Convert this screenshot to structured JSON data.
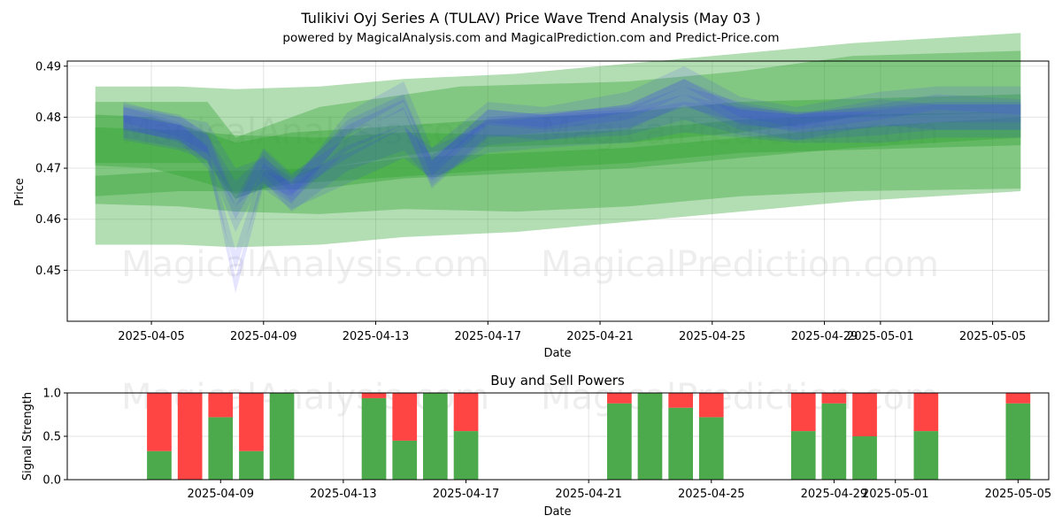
{
  "title": "Tulikivi Oyj Series A (TULAV) Price Wave Trend Analysis (May 03 )",
  "subtitle": "powered by MagicalAnalysis.com and MagicalPrediction.com and Predict-Price.com",
  "watermarks": [
    "MagicalAnalysis.com",
    "MagicalPrediction.com"
  ],
  "colors": {
    "green": "#2ca02c",
    "blue": "#3333ff",
    "buy": "#4caa4c",
    "sell": "#ff4444"
  },
  "chart_data": [
    {
      "type": "area",
      "xlabel": "Date",
      "ylabel": "Price",
      "xlim": [
        "2025-04-02",
        "2025-05-07"
      ],
      "ylim": [
        0.44,
        0.491
      ],
      "grid": true,
      "x_ticks": [
        "2025-04-05",
        "2025-04-09",
        "2025-04-13",
        "2025-04-17",
        "2025-04-21",
        "2025-04-25",
        "2025-04-29",
        "2025-05-01",
        "2025-05-05"
      ],
      "y_ticks": [
        0.45,
        0.46,
        0.47,
        0.48,
        0.49
      ],
      "green_bands": [
        {
          "x": [
            "2025-04-03",
            "2025-04-06",
            "2025-04-08",
            "2025-04-11",
            "2025-04-14",
            "2025-04-18",
            "2025-04-22",
            "2025-04-26",
            "2025-04-30",
            "2025-05-06"
          ],
          "y": [
            0.4665,
            0.4675,
            0.4675,
            0.468,
            0.47,
            0.471,
            0.472,
            0.474,
            0.476,
            0.478
          ],
          "w": 0.002
        },
        {
          "x": [
            "2025-04-03",
            "2025-04-06",
            "2025-04-08",
            "2025-04-11",
            "2025-04-14",
            "2025-04-18",
            "2025-04-22",
            "2025-04-26",
            "2025-04-30",
            "2025-05-06"
          ],
          "y": [
            0.4705,
            0.47,
            0.469,
            0.4685,
            0.4695,
            0.469,
            0.47,
            0.472,
            0.473,
            0.4735
          ],
          "w": 0.0075
        },
        {
          "x": [
            "2025-04-03",
            "2025-04-06",
            "2025-04-08",
            "2025-04-11",
            "2025-04-14",
            "2025-04-18",
            "2025-04-22",
            "2025-04-26",
            "2025-04-30",
            "2025-05-06"
          ],
          "y": [
            0.4705,
            0.4705,
            0.47,
            0.4705,
            0.472,
            0.473,
            0.475,
            0.477,
            0.479,
            0.481
          ],
          "w": 0.0155
        },
        {
          "x": [
            "2025-04-03",
            "2025-04-05",
            "2025-04-07",
            "2025-04-08",
            "2025-04-10",
            "2025-04-13",
            "2025-04-17",
            "2025-04-22",
            "2025-04-26",
            "2025-05-06"
          ],
          "y": [
            0.4755,
            0.475,
            0.472,
            0.47,
            0.472,
            0.473,
            0.4745,
            0.476,
            0.478,
            0.4795
          ],
          "w": 0.005
        },
        {
          "x": [
            "2025-04-03",
            "2025-04-07",
            "2025-04-08",
            "2025-04-11",
            "2025-04-16",
            "2025-04-22",
            "2025-04-26",
            "2025-04-30",
            "2025-05-06"
          ],
          "y": [
            0.477,
            0.477,
            0.47,
            0.476,
            0.48,
            0.481,
            0.483,
            0.486,
            0.487
          ],
          "w": 0.006
        }
      ],
      "blue_waves": [
        {
          "x": [
            "2025-04-04",
            "2025-04-06",
            "2025-04-07",
            "2025-04-08",
            "2025-04-09",
            "2025-04-10",
            "2025-04-12",
            "2025-04-14",
            "2025-04-15",
            "2025-04-17",
            "2025-04-19",
            "2025-04-22",
            "2025-04-24",
            "2025-04-26",
            "2025-04-28",
            "2025-05-01",
            "2025-05-03",
            "2025-05-06"
          ],
          "y": [
            0.479,
            0.477,
            0.473,
            0.447,
            0.468,
            0.466,
            0.478,
            0.483,
            0.47,
            0.48,
            0.479,
            0.481,
            0.486,
            0.48,
            0.479,
            0.481,
            0.483,
            0.482
          ],
          "w": 0.0015
        },
        {
          "x": [
            "2025-04-04",
            "2025-04-06",
            "2025-04-07",
            "2025-04-08",
            "2025-04-09",
            "2025-04-10",
            "2025-04-12",
            "2025-04-14",
            "2025-04-15",
            "2025-04-17",
            "2025-04-19",
            "2025-04-22",
            "2025-04-24",
            "2025-04-26",
            "2025-04-28",
            "2025-05-01",
            "2025-05-03",
            "2025-05-06"
          ],
          "y": [
            0.48,
            0.477,
            0.472,
            0.452,
            0.469,
            0.465,
            0.479,
            0.485,
            0.472,
            0.481,
            0.48,
            0.483,
            0.488,
            0.482,
            0.48,
            0.483,
            0.484,
            0.484
          ],
          "w": 0.002
        },
        {
          "x": [
            "2025-04-04",
            "2025-04-06",
            "2025-04-07",
            "2025-04-08",
            "2025-04-09",
            "2025-04-10",
            "2025-04-12",
            "2025-04-14",
            "2025-04-15",
            "2025-04-17",
            "2025-04-19",
            "2025-04-22",
            "2025-04-24",
            "2025-04-26",
            "2025-04-28",
            "2025-05-01",
            "2025-05-03",
            "2025-05-06"
          ],
          "y": [
            0.478,
            0.476,
            0.474,
            0.465,
            0.47,
            0.464,
            0.472,
            0.476,
            0.47,
            0.477,
            0.478,
            0.479,
            0.482,
            0.479,
            0.478,
            0.479,
            0.48,
            0.48
          ],
          "w": 0.0025
        },
        {
          "x": [
            "2025-04-04",
            "2025-04-06",
            "2025-04-07",
            "2025-04-08",
            "2025-04-09",
            "2025-04-10",
            "2025-04-12",
            "2025-04-14",
            "2025-04-15",
            "2025-04-17",
            "2025-04-19",
            "2025-04-22",
            "2025-04-24",
            "2025-04-26",
            "2025-04-28",
            "2025-05-01",
            "2025-05-03",
            "2025-05-06"
          ],
          "y": [
            0.481,
            0.478,
            0.475,
            0.462,
            0.472,
            0.467,
            0.474,
            0.48,
            0.468,
            0.478,
            0.479,
            0.48,
            0.484,
            0.481,
            0.479,
            0.48,
            0.481,
            0.481
          ],
          "w": 0.002
        },
        {
          "x": [
            "2025-04-04",
            "2025-04-06",
            "2025-04-07",
            "2025-04-08",
            "2025-04-09",
            "2025-04-10",
            "2025-04-12",
            "2025-04-14",
            "2025-04-15",
            "2025-04-17",
            "2025-04-19",
            "2025-04-22",
            "2025-04-24",
            "2025-04-26",
            "2025-04-28",
            "2025-05-01",
            "2025-05-03",
            "2025-05-06"
          ],
          "y": [
            0.479,
            0.477,
            0.476,
            0.467,
            0.469,
            0.465,
            0.47,
            0.475,
            0.471,
            0.476,
            0.477,
            0.478,
            0.48,
            0.479,
            0.478,
            0.478,
            0.479,
            0.479
          ],
          "w": 0.003
        },
        {
          "x": [
            "2025-04-04",
            "2025-04-06",
            "2025-04-07",
            "2025-04-08",
            "2025-04-09",
            "2025-04-10",
            "2025-04-12",
            "2025-04-14",
            "2025-04-15",
            "2025-04-17",
            "2025-04-19",
            "2025-04-22",
            "2025-04-24",
            "2025-04-26",
            "2025-04-28",
            "2025-05-01",
            "2025-05-03",
            "2025-05-06"
          ],
          "y": [
            0.48,
            0.478,
            0.474,
            0.46,
            0.471,
            0.466,
            0.476,
            0.481,
            0.469,
            0.479,
            0.478,
            0.48,
            0.485,
            0.48,
            0.478,
            0.481,
            0.48,
            0.48
          ],
          "w": 0.0025
        }
      ]
    },
    {
      "type": "bar",
      "title": "Buy and Sell Powers",
      "xlabel": "Date",
      "ylabel": "Signal Strength",
      "xlim": [
        "2025-04-04",
        "2025-05-06"
      ],
      "ylim": [
        0,
        1.0
      ],
      "grid": true,
      "x_ticks": [
        "2025-04-09",
        "2025-04-13",
        "2025-04-17",
        "2025-04-21",
        "2025-04-25",
        "2025-04-29",
        "2025-05-01",
        "2025-05-05"
      ],
      "y_ticks": [
        0.0,
        0.5,
        1.0
      ],
      "y_tick_labels": [
        "0.0",
        "0.5",
        "1.0"
      ],
      "bars": [
        {
          "date": "2025-04-07",
          "buy": 0.33,
          "sell": 0.67
        },
        {
          "date": "2025-04-08",
          "buy": 0.0,
          "sell": 1.0
        },
        {
          "date": "2025-04-09",
          "buy": 0.72,
          "sell": 0.28
        },
        {
          "date": "2025-04-10",
          "buy": 0.33,
          "sell": 0.67
        },
        {
          "date": "2025-04-11",
          "buy": 1.0,
          "sell": 0.0
        },
        {
          "date": "2025-04-14",
          "buy": 0.94,
          "sell": 0.06
        },
        {
          "date": "2025-04-15",
          "buy": 0.45,
          "sell": 0.55
        },
        {
          "date": "2025-04-16",
          "buy": 1.0,
          "sell": 0.0
        },
        {
          "date": "2025-04-17",
          "buy": 0.56,
          "sell": 0.44
        },
        {
          "date": "2025-04-22",
          "buy": 0.88,
          "sell": 0.12
        },
        {
          "date": "2025-04-23",
          "buy": 1.0,
          "sell": 0.0
        },
        {
          "date": "2025-04-24",
          "buy": 0.83,
          "sell": 0.17
        },
        {
          "date": "2025-04-25",
          "buy": 0.72,
          "sell": 0.28
        },
        {
          "date": "2025-04-28",
          "buy": 0.56,
          "sell": 0.44
        },
        {
          "date": "2025-04-29",
          "buy": 0.88,
          "sell": 0.12
        },
        {
          "date": "2025-04-30",
          "buy": 0.5,
          "sell": 0.5
        },
        {
          "date": "2025-05-02",
          "buy": 0.56,
          "sell": 0.44
        },
        {
          "date": "2025-05-05",
          "buy": 0.88,
          "sell": 0.12
        }
      ]
    }
  ]
}
